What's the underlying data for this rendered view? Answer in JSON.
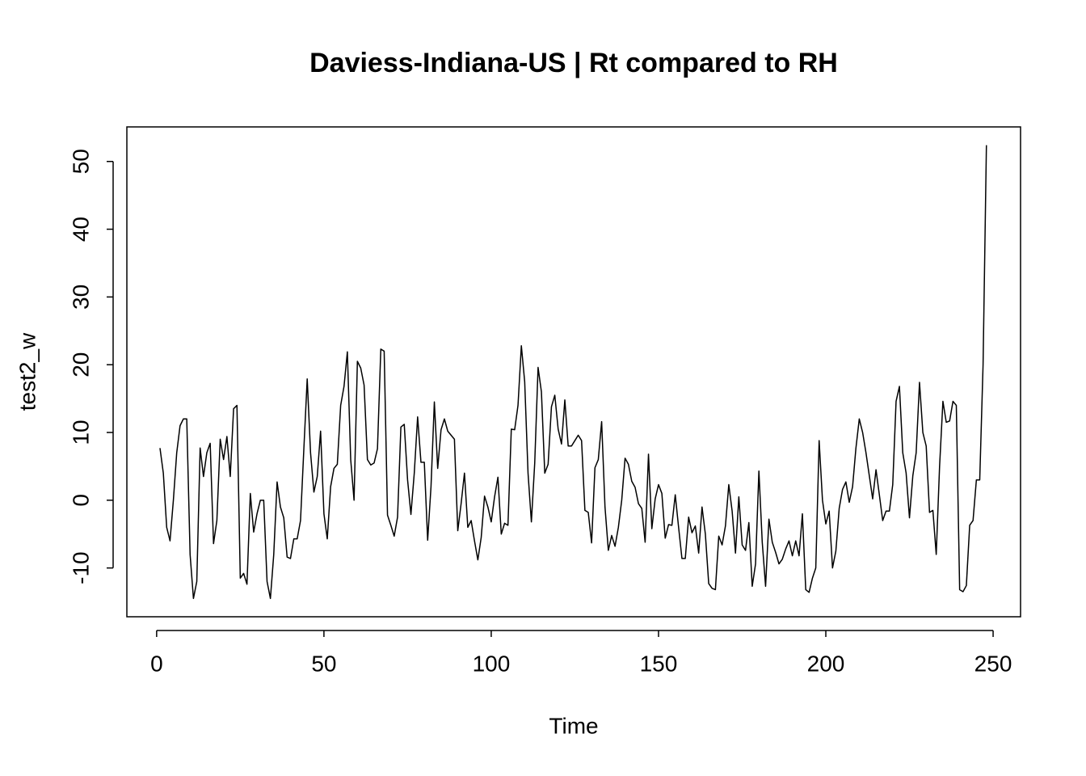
{
  "chart_data": {
    "type": "line",
    "title": "Daviess-Indiana-US | Rt compared to RH",
    "x_label": "Time",
    "y_label": "test2_w",
    "color": "#000000",
    "x": [
      1,
      2,
      3,
      4,
      5,
      6,
      7,
      8,
      9,
      10,
      11,
      12,
      13,
      14,
      15,
      16,
      17,
      18,
      19,
      20,
      21,
      22,
      23,
      24,
      25,
      26,
      27,
      28,
      29,
      30,
      31,
      32,
      33,
      34,
      35,
      36,
      37,
      38,
      39,
      40,
      41,
      42,
      43,
      44,
      45,
      46,
      47,
      48,
      49,
      50,
      51,
      52,
      53,
      54,
      55,
      56,
      57,
      58,
      59,
      60,
      61,
      62,
      63,
      64,
      65,
      66,
      67,
      68,
      69,
      70,
      71,
      72,
      73,
      74,
      75,
      76,
      77,
      78,
      79,
      80,
      81,
      82,
      83,
      84,
      85,
      86,
      87,
      88,
      89,
      90,
      91,
      92,
      93,
      94,
      95,
      96,
      97,
      98,
      99,
      100,
      101,
      102,
      103,
      104,
      105,
      106,
      107,
      108,
      109,
      110,
      111,
      112,
      113,
      114,
      115,
      116,
      117,
      118,
      119,
      120,
      121,
      122,
      123,
      124,
      125,
      126,
      127,
      128,
      129,
      130,
      131,
      132,
      133,
      134,
      135,
      136,
      137,
      138,
      139,
      140,
      141,
      142,
      143,
      144,
      145,
      146,
      147,
      148,
      149,
      150,
      151,
      152,
      153,
      154,
      155,
      156,
      157,
      158,
      159,
      160,
      161,
      162,
      163,
      164,
      165,
      166,
      167,
      168,
      169,
      170,
      171,
      172,
      173,
      174,
      175,
      176,
      177,
      178,
      179,
      180,
      181,
      182,
      183,
      184,
      185,
      186,
      187,
      188,
      189,
      190,
      191,
      192,
      193,
      194,
      195,
      196,
      197,
      198,
      199,
      200,
      201,
      202,
      203,
      204,
      205,
      206,
      207,
      208,
      209,
      210,
      211,
      212,
      213,
      214,
      215,
      216,
      217,
      218,
      219,
      220,
      221,
      222,
      223,
      224,
      225,
      226,
      227,
      228,
      229,
      230,
      231,
      232,
      233,
      234,
      235,
      236,
      237,
      238,
      239,
      240,
      241,
      242,
      243,
      244,
      245,
      246,
      247,
      248
    ],
    "values": [
      7.7,
      4,
      -4,
      -6,
      0,
      7,
      11,
      12,
      12,
      -8,
      -14.5,
      -12,
      7.7,
      3.5,
      7,
      8.4,
      -6.4,
      -3,
      9,
      6,
      9.4,
      3.5,
      13.5,
      14,
      -11.5,
      -10.8,
      -12.4,
      1,
      -4.7,
      -2,
      0,
      0,
      -12,
      -14.5,
      -8,
      2.7,
      -1,
      -2.6,
      -8.4,
      -8.6,
      -5.7,
      -5.7,
      -3,
      7.6,
      17.9,
      7,
      1.2,
      3.5,
      10.2,
      -2,
      -5.7,
      2,
      4.7,
      5.3,
      14,
      16.8,
      21.9,
      6,
      0,
      20.5,
      19.5,
      17,
      6,
      5.2,
      5.5,
      7.6,
      22.3,
      22,
      -2.2,
      -3.7,
      -5.3,
      -2.5,
      10.8,
      11.2,
      3,
      -2.1,
      4,
      12.3,
      5.6,
      5.6,
      -5.9,
      2,
      14.5,
      4.7,
      10.4,
      12,
      10.2,
      9.6,
      9,
      -4.5,
      -0.5,
      4,
      -4,
      -3,
      -6,
      -8.8,
      -5.5,
      0.6,
      -1,
      -3.2,
      0.5,
      3.4,
      -5,
      -3.4,
      -3.7,
      10.5,
      10.4,
      14,
      22.8,
      17.5,
      4,
      -3.2,
      5.5,
      19.6,
      16,
      4,
      5.3,
      13.8,
      15.5,
      10.5,
      8.3,
      14.8,
      8,
      8,
      8.8,
      9.6,
      8.8,
      -1.5,
      -1.8,
      -6.3,
      4.8,
      6,
      11.6,
      -1,
      -7.4,
      -5.2,
      -6.8,
      -4,
      0,
      6.2,
      5.3,
      2.8,
      1.9,
      -0.5,
      -1.2,
      -6.2,
      6.8,
      -4.2,
      0.2,
      2.3,
      1,
      -5.6,
      -3.6,
      -3.7,
      0.8,
      -4,
      -8.6,
      -8.6,
      -2.5,
      -4.8,
      -3.8,
      -7.8,
      -1,
      -5,
      -12.3,
      -13,
      -13.2,
      -5.3,
      -6.6,
      -3.8,
      2.3,
      -1.6,
      -7.8,
      0.5,
      -6.6,
      -7.4,
      -3.3,
      -12.7,
      -9.4,
      4.3,
      -6.2,
      -12.7,
      -2.8,
      -6.2,
      -7.7,
      -9.4,
      -8.7,
      -7.2,
      -6,
      -8.2,
      -6,
      -8.2,
      -2,
      -13.2,
      -13.6,
      -11.5,
      -10,
      8.8,
      0,
      -3.5,
      -1.6,
      -10,
      -7.5,
      -1.2,
      1.6,
      2.7,
      -0.3,
      2,
      7.7,
      12,
      10,
      7,
      3.6,
      0.2,
      4.5,
      0.8,
      -3,
      -1.6,
      -1.6,
      2.3,
      14.6,
      16.8,
      7,
      4,
      -2.6,
      3.6,
      7,
      17.4,
      10,
      8,
      -1.8,
      -1.5,
      -8,
      5,
      14.6,
      11.5,
      11.7,
      14.6,
      14,
      -13.2,
      -13.5,
      -12.6,
      -3.7,
      -3,
      3,
      3,
      20,
      52.4
    ],
    "xlim": [
      -8.9,
      258.2
    ],
    "ylim": [
      -17.2,
      55.1
    ],
    "xticks": [
      0,
      50,
      100,
      150,
      200,
      250
    ],
    "yticks": [
      -10,
      0,
      10,
      20,
      30,
      40,
      50
    ],
    "grid": false
  }
}
